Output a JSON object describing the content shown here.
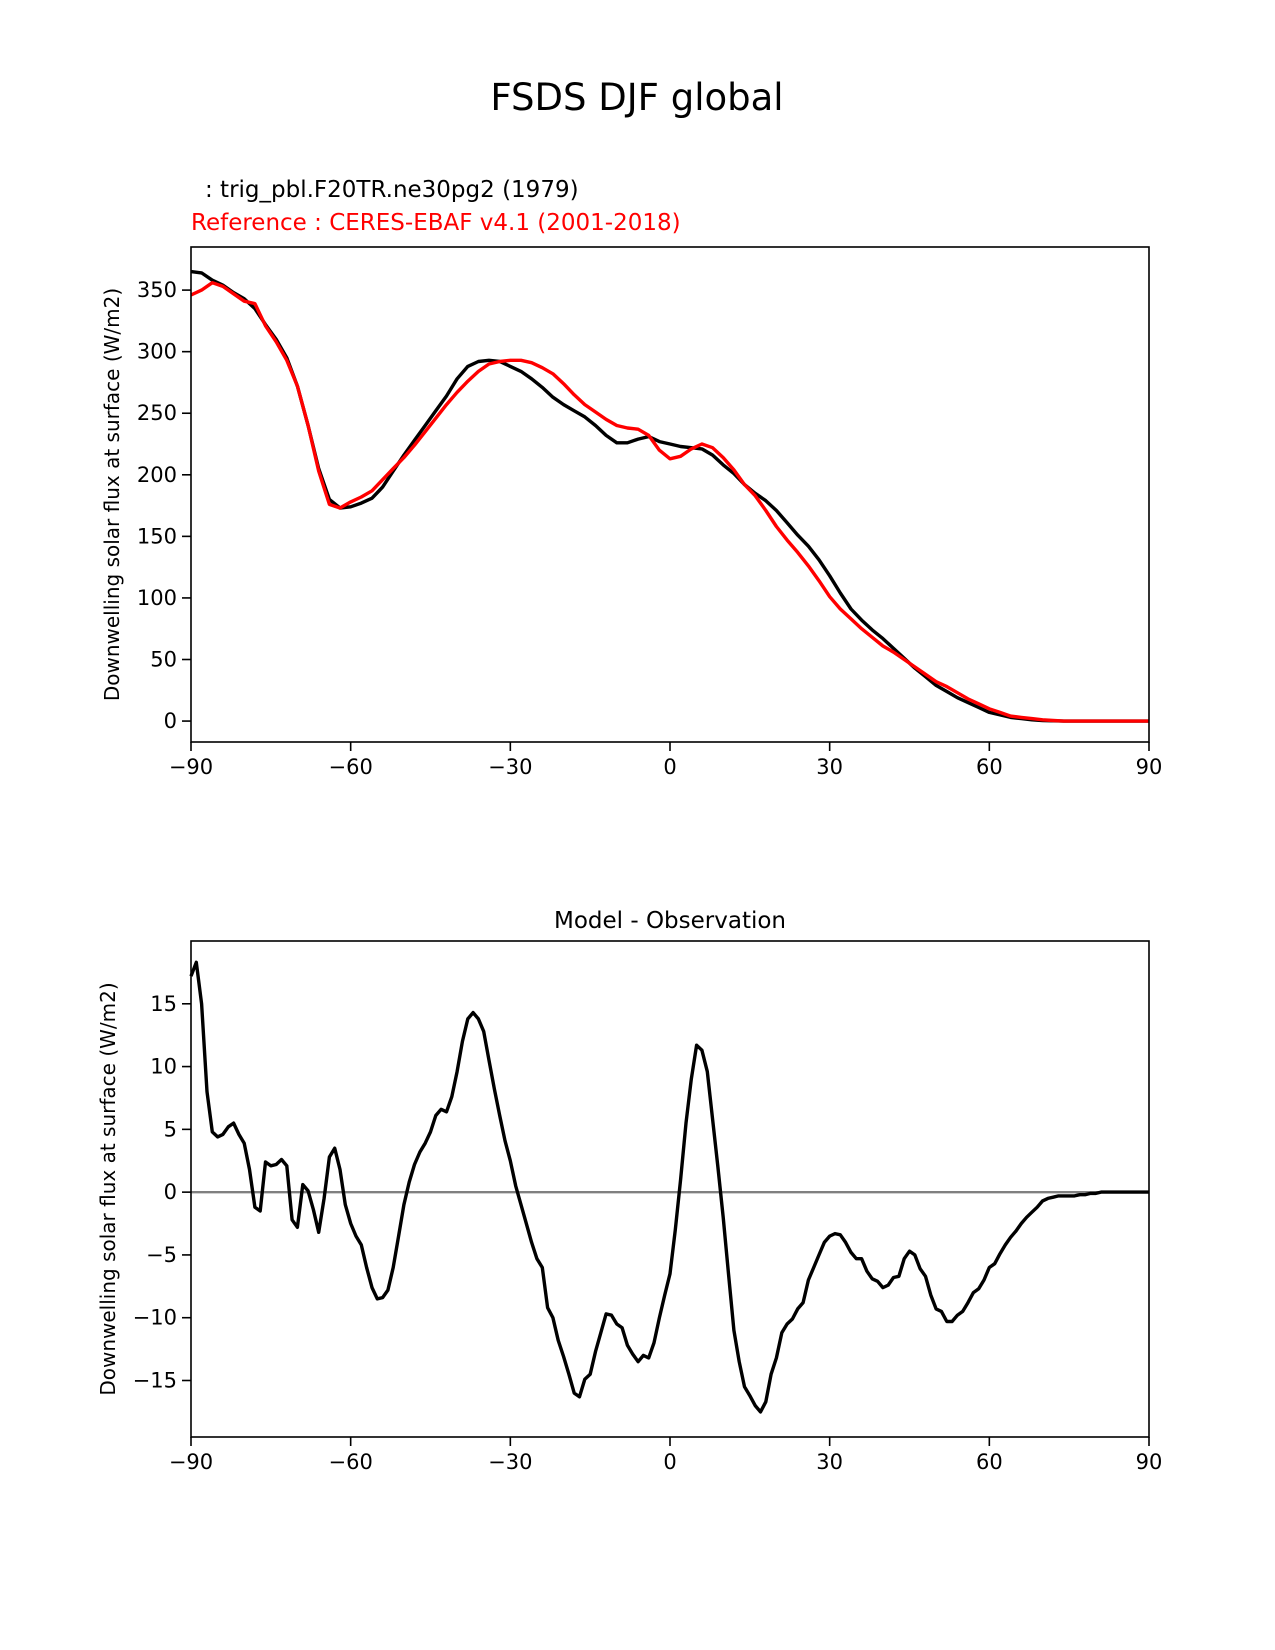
{
  "figure": {
    "title": "FSDS DJF global"
  },
  "colors": {
    "model": "#000000",
    "reference": "#ff0000",
    "zero_line": "#808080"
  },
  "chart_data": [
    {
      "type": "line",
      "subtitle_model": ": trig_pbl.F20TR.ne30pg2 (1979)",
      "subtitle_reference": "Reference : CERES-EBAF v4.1 (2001-2018)",
      "xlabel": "",
      "ylabel": "Downwelling solar flux at surface (W/m2)",
      "xlim": [
        -90,
        90
      ],
      "ylim": [
        -17,
        385
      ],
      "xticks": [
        -90,
        -60,
        -30,
        0,
        30,
        60,
        90
      ],
      "xtick_labels": [
        "−90",
        "−60",
        "−30",
        "0",
        "30",
        "60",
        "90"
      ],
      "yticks": [
        0,
        50,
        100,
        150,
        200,
        250,
        300,
        350
      ],
      "ytick_labels": [
        "0",
        "50",
        "100",
        "150",
        "200",
        "250",
        "300",
        "350"
      ],
      "grid": false,
      "series": [
        {
          "color": "#000000",
          "x": [
            -90,
            -88,
            -86,
            -84,
            -82,
            -80,
            -78,
            -76,
            -74,
            -72,
            -70,
            -68,
            -66,
            -64,
            -62,
            -60,
            -58,
            -56,
            -54,
            -52,
            -50,
            -48,
            -46,
            -44,
            -42,
            -40,
            -38,
            -36,
            -34,
            -32,
            -30,
            -28,
            -26,
            -24,
            -22,
            -20,
            -18,
            -16,
            -14,
            -12,
            -10,
            -8,
            -6,
            -4,
            -2,
            0,
            2,
            4,
            6,
            8,
            10,
            12,
            14,
            16,
            18,
            20,
            22,
            24,
            26,
            28,
            30,
            32,
            34,
            36,
            38,
            40,
            42,
            44,
            46,
            48,
            50,
            52,
            54,
            56,
            58,
            60,
            62,
            64,
            66,
            68,
            70,
            72,
            74,
            76,
            78,
            80,
            82,
            84,
            86,
            88,
            90
          ],
          "y": [
            365,
            364,
            358,
            354,
            348,
            343,
            335,
            322,
            310,
            295,
            272,
            240,
            205,
            180,
            173,
            174,
            177,
            181,
            190,
            203,
            216,
            228,
            240,
            252,
            264,
            278,
            288,
            292,
            293,
            292,
            288,
            284,
            278,
            271,
            263,
            257,
            252,
            247,
            240,
            232,
            226,
            226,
            229,
            231,
            227,
            225,
            223,
            222,
            221,
            216,
            208,
            201,
            192,
            185,
            179,
            171,
            161,
            151,
            142,
            131,
            118,
            104,
            91,
            82,
            74,
            67,
            59,
            51,
            43,
            36,
            29,
            24,
            19,
            15,
            11,
            7,
            5,
            3,
            2,
            1,
            0.5,
            0.2,
            0,
            0,
            0,
            0,
            0,
            0,
            0,
            0,
            0
          ]
        },
        {
          "color": "#ff0000",
          "x": [
            -90,
            -88,
            -86,
            -84,
            -82,
            -80,
            -78,
            -76,
            -74,
            -72,
            -70,
            -68,
            -66,
            -64,
            -62,
            -60,
            -58,
            -56,
            -54,
            -52,
            -50,
            -48,
            -46,
            -44,
            -42,
            -40,
            -38,
            -36,
            -34,
            -32,
            -30,
            -28,
            -26,
            -24,
            -22,
            -20,
            -18,
            -16,
            -14,
            -12,
            -10,
            -8,
            -6,
            -4,
            -2,
            0,
            2,
            4,
            6,
            8,
            10,
            12,
            14,
            16,
            18,
            20,
            22,
            24,
            26,
            28,
            30,
            32,
            34,
            36,
            38,
            40,
            42,
            44,
            46,
            48,
            50,
            52,
            54,
            56,
            58,
            60,
            62,
            64,
            66,
            68,
            70,
            72,
            74,
            76,
            78,
            80,
            82,
            84,
            86,
            88,
            90
          ],
          "y": [
            346,
            350,
            356,
            353,
            347,
            341,
            339,
            321,
            308,
            293,
            272,
            240,
            203,
            176,
            173,
            178,
            182,
            187,
            196,
            205,
            214,
            224,
            235,
            246,
            257,
            267,
            276,
            284,
            290,
            292,
            293,
            293,
            291,
            287,
            282,
            274,
            265,
            257,
            251,
            245,
            240,
            238,
            237,
            232,
            220,
            213,
            215,
            221,
            225,
            222,
            214,
            204,
            192,
            183,
            171,
            158,
            147,
            137,
            126,
            114,
            101,
            91,
            83,
            75,
            68,
            61,
            56,
            50,
            44,
            38,
            32,
            28,
            23,
            18,
            14,
            10,
            7,
            4,
            3,
            2,
            1,
            0.5,
            0,
            0,
            0,
            0,
            0,
            0,
            0,
            0,
            0
          ]
        }
      ]
    },
    {
      "type": "line",
      "title": "Model - Observation",
      "xlabel": "",
      "ylabel": "Downwelling solar flux at surface (W/m2)",
      "xlim": [
        -90,
        90
      ],
      "ylim": [
        -19.5,
        20
      ],
      "xticks": [
        -90,
        -60,
        -30,
        0,
        30,
        60,
        90
      ],
      "xtick_labels": [
        "−90",
        "−60",
        "−30",
        "0",
        "30",
        "60",
        "90"
      ],
      "yticks": [
        -15,
        -10,
        -5,
        0,
        5,
        10,
        15
      ],
      "ytick_labels": [
        "−15",
        "−10",
        "−5",
        "0",
        "5",
        "10",
        "15"
      ],
      "grid": false,
      "zero_line": true,
      "series": [
        {
          "color": "#000000",
          "x": [
            -90,
            -89,
            -88,
            -87,
            -86,
            -85,
            -84,
            -83,
            -82,
            -81,
            -80,
            -79,
            -78,
            -77,
            -76,
            -75,
            -74,
            -73,
            -72,
            -71,
            -70,
            -69,
            -68,
            -67,
            -66,
            -65,
            -64,
            -63,
            -62,
            -61,
            -60,
            -59,
            -58,
            -57,
            -56,
            -55,
            -54,
            -53,
            -52,
            -51,
            -50,
            -49,
            -48,
            -47,
            -46,
            -45,
            -44,
            -43,
            -42,
            -41,
            -40,
            -39,
            -38,
            -37,
            -36,
            -35,
            -34,
            -33,
            -32,
            -31,
            -30,
            -29,
            -28,
            -27,
            -26,
            -25,
            -24,
            -23,
            -22,
            -21,
            -20,
            -19,
            -18,
            -17,
            -16,
            -15,
            -14,
            -13,
            -12,
            -11,
            -10,
            -9,
            -8,
            -7,
            -6,
            -5,
            -4,
            -3,
            -2,
            -1,
            0,
            1,
            2,
            3,
            4,
            5,
            6,
            7,
            8,
            9,
            10,
            11,
            12,
            13,
            14,
            15,
            16,
            17,
            18,
            19,
            20,
            21,
            22,
            23,
            24,
            25,
            26,
            27,
            28,
            29,
            30,
            31,
            32,
            33,
            34,
            35,
            36,
            37,
            38,
            39,
            40,
            41,
            42,
            43,
            44,
            45,
            46,
            47,
            48,
            49,
            50,
            51,
            52,
            53,
            54,
            55,
            56,
            57,
            58,
            59,
            60,
            61,
            62,
            63,
            64,
            65,
            66,
            67,
            68,
            69,
            70,
            71,
            72,
            73,
            74,
            75,
            76,
            77,
            78,
            79,
            80,
            81,
            82,
            83,
            84,
            85,
            86,
            87,
            88,
            89,
            90
          ],
          "y": [
            17.2,
            18.3,
            15.0,
            8.0,
            4.8,
            4.4,
            4.6,
            5.2,
            5.5,
            4.6,
            3.9,
            1.8,
            -1.2,
            -1.5,
            2.4,
            2.1,
            2.2,
            2.6,
            2.1,
            -2.2,
            -2.8,
            0.6,
            0.1,
            -1.4,
            -3.2,
            -0.5,
            2.8,
            3.5,
            1.8,
            -1.0,
            -2.5,
            -3.5,
            -4.2,
            -6.0,
            -7.6,
            -8.5,
            -8.4,
            -7.8,
            -6.0,
            -3.5,
            -1.0,
            0.8,
            2.2,
            3.2,
            3.9,
            4.8,
            6.1,
            6.6,
            6.4,
            7.6,
            9.6,
            12.0,
            13.8,
            14.3,
            13.8,
            12.8,
            10.5,
            8.2,
            6.1,
            4.1,
            2.5,
            0.5,
            -1.0,
            -2.5,
            -4.0,
            -5.3,
            -6.0,
            -9.2,
            -10.0,
            -11.8,
            -13.1,
            -14.5,
            -16.0,
            -16.3,
            -14.9,
            -14.5,
            -12.7,
            -11.2,
            -9.7,
            -9.8,
            -10.5,
            -10.8,
            -12.2,
            -12.9,
            -13.5,
            -13.0,
            -13.2,
            -12.0,
            -10.0,
            -8.2,
            -6.5,
            -3.0,
            1.0,
            5.5,
            9.0,
            11.7,
            11.3,
            9.6,
            5.8,
            2.0,
            -2.0,
            -6.5,
            -11.0,
            -13.5,
            -15.5,
            -16.2,
            -17.0,
            -17.5,
            -16.7,
            -14.5,
            -13.2,
            -11.2,
            -10.5,
            -10.1,
            -9.3,
            -8.8,
            -7.0,
            -6.0,
            -5.0,
            -4.0,
            -3.5,
            -3.3,
            -3.4,
            -4.0,
            -4.8,
            -5.3,
            -5.3,
            -6.3,
            -6.9,
            -7.1,
            -7.6,
            -7.4,
            -6.8,
            -6.7,
            -5.3,
            -4.7,
            -5.0,
            -6.1,
            -6.7,
            -8.2,
            -9.3,
            -9.5,
            -10.3,
            -10.3,
            -9.8,
            -9.5,
            -8.8,
            -8.0,
            -7.7,
            -7.0,
            -6.0,
            -5.7,
            -4.9,
            -4.2,
            -3.6,
            -3.1,
            -2.5,
            -2.0,
            -1.6,
            -1.2,
            -0.7,
            -0.5,
            -0.4,
            -0.3,
            -0.3,
            -0.3,
            -0.3,
            -0.2,
            -0.2,
            -0.1,
            -0.1,
            0,
            0,
            0,
            0,
            0,
            0,
            0,
            0,
            0,
            0
          ]
        }
      ]
    }
  ]
}
